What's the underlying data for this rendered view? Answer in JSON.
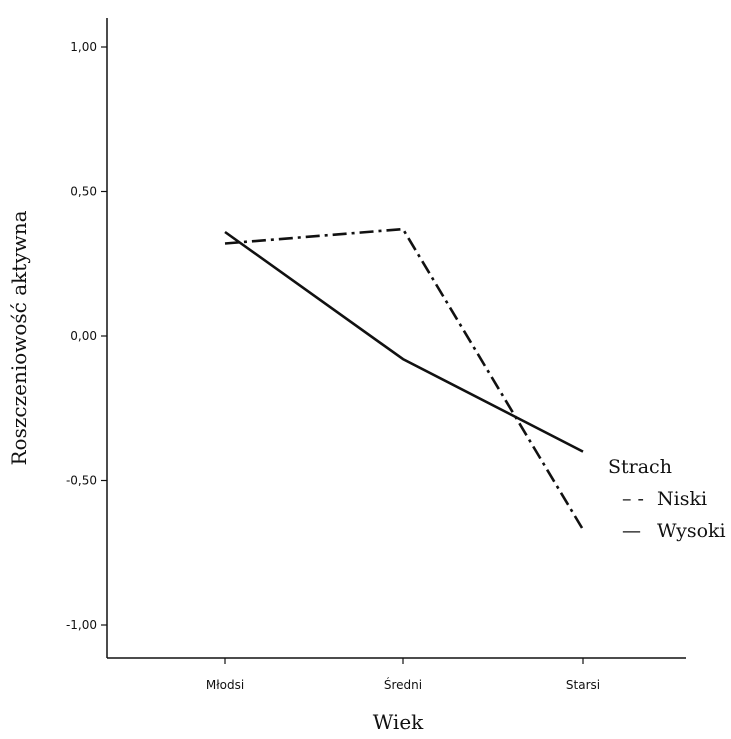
{
  "chart_data": {
    "type": "line",
    "categories": [
      "Młodsi",
      "Średni",
      "Starsi"
    ],
    "series": [
      {
        "name": "Niski",
        "values": [
          0.32,
          0.37,
          -0.67
        ],
        "style": "dash-dot",
        "color": "#111111"
      },
      {
        "name": "Wysoki",
        "values": [
          0.36,
          -0.08,
          -0.4
        ],
        "style": "solid",
        "color": "#111111"
      }
    ],
    "xlabel": "Wiek",
    "ylabel": "Roszczeniowość aktywna",
    "ylim": [
      -1.1,
      1.1
    ],
    "yticks": [
      1.0,
      0.5,
      0.0,
      -0.5,
      -1.0
    ],
    "ytick_labels": [
      "1,00",
      "0,50",
      "0,00",
      "-0,50",
      "-1,00"
    ],
    "grid": false,
    "legend": {
      "title": "Strach",
      "placement": "right",
      "entries": [
        {
          "symbol": "– -",
          "label": "Niski"
        },
        {
          "symbol": "—",
          "label": "Wysoki"
        }
      ]
    }
  }
}
